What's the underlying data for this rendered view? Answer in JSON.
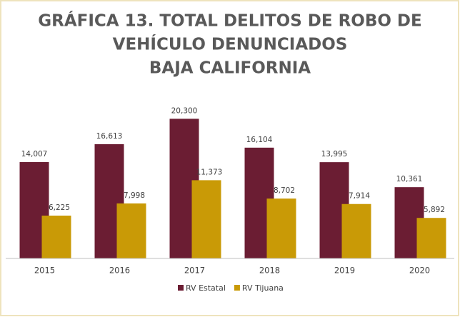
{
  "chart_data": {
    "type": "bar",
    "title": [
      "GRÁFICA 13. TOTAL DELITOS DE ROBO DE",
      "VEHÍCULO DENUNCIADOS",
      "BAJA CALIFORNIA"
    ],
    "categories": [
      "2015",
      "2016",
      "2017",
      "2018",
      "2019",
      "2020"
    ],
    "series": [
      {
        "name": "RV Estatal",
        "color": "#6b1d33",
        "values": [
          14007,
          16613,
          20300,
          16104,
          13995,
          10361
        ],
        "value_labels": [
          "14,007",
          "16,613",
          "20,300",
          "16,104",
          "13,995",
          "10,361"
        ]
      },
      {
        "name": "RV Tijuana",
        "color": "#c99a06",
        "values": [
          6225,
          7998,
          11373,
          8702,
          7914,
          5892
        ],
        "value_labels": [
          "6,225",
          "7,998",
          "11,373",
          "8,702",
          "7,914",
          "5,892"
        ]
      }
    ],
    "ylim": [
      0,
      22000
    ],
    "legend": "bottom"
  }
}
